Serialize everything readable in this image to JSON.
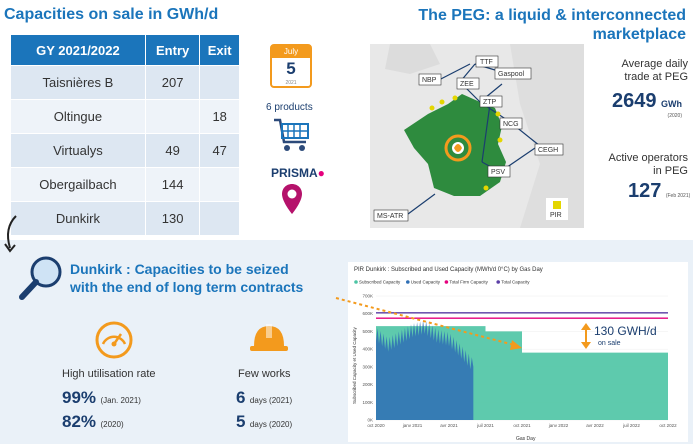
{
  "capacities": {
    "title": "Capacities on sale in GWh/d",
    "headers": [
      "GY 2021/2022",
      "Entry",
      "Exit"
    ],
    "rows": [
      {
        "name": "Taisnières B",
        "entry": "207",
        "exit": ""
      },
      {
        "name": "Oltingue",
        "entry": "",
        "exit": "18"
      },
      {
        "name": "Virtualys",
        "entry": "49",
        "exit": "47"
      },
      {
        "name": "Obergailbach",
        "entry": "144",
        "exit": ""
      },
      {
        "name": "Dunkirk",
        "entry": "130",
        "exit": ""
      }
    ]
  },
  "calendar": {
    "month": "July",
    "day": "5",
    "year": "2021"
  },
  "products_label": "6 products",
  "prisma_label": "PRISMA",
  "peg": {
    "title_line1": "The PEG: a liquid & interconnected",
    "title_line2": "marketplace",
    "map_labels": {
      "ttf": "TTF",
      "nbp": "NBP",
      "zee": "ZEE",
      "gaspool": "Gaspool",
      "ztp": "ZTP",
      "ncg": "NCG",
      "cegh": "CEGH",
      "psv": "PSV",
      "msatr": "MS-ATR",
      "pir": "PIR"
    },
    "trade_label_1": "Average daily",
    "trade_label_2": "trade at PEG",
    "trade_value": "2649",
    "trade_unit": "GWh",
    "trade_year": "(2020)",
    "operators_label_1": "Active operators",
    "operators_label_2": "in PEG",
    "operators_value": "127",
    "operators_date": "(Feb 2021)"
  },
  "dunkirk": {
    "title_line1": "Dunkirk : Capacities to be seized",
    "title_line2": "with the end of long term contracts",
    "util_label": "High utilisation rate",
    "util_val1": "99%",
    "util_note1": "(Jan. 2021)",
    "util_val2": "82%",
    "util_note2": "(2020)",
    "works_label": "Few works",
    "works_val1": "6",
    "works_note1": "days (2021)",
    "works_val2": "5",
    "works_note2": "days (2020)"
  },
  "colors": {
    "blue": "#1b75bb",
    "navy": "#1b3e6f",
    "orange": "#f39a1d",
    "teal": "#4cc4a4",
    "pink": "#e5007d"
  },
  "chart_data": {
    "type": "area",
    "title": "PIR Dunkirk : Subscribed and Used Capacity (MWh/d 0°C) by Gas Day",
    "xlabel": "Gas Day",
    "ylabel": "Subscribed Capacity et Used Capacity",
    "legend": [
      "Subscribed Capacity",
      "Used Capacity",
      "Total Firm Capacity",
      "Total Capacity"
    ],
    "legend_position": "top-left",
    "x_ticks": [
      "oct 2020",
      "janv 2021",
      "avr 2021",
      "juil 2021",
      "oct 2021",
      "janv 2022",
      "avr 2022",
      "juil 2022",
      "oct 2022"
    ],
    "y_ticks": [
      "0K",
      "100K",
      "200K",
      "300K",
      "400K",
      "500K",
      "600K",
      "700K"
    ],
    "ylim": [
      0,
      700000
    ],
    "series": [
      {
        "name": "Total Capacity",
        "color": "#5b3fa6",
        "x": [
          "oct 2020",
          "oct 2022"
        ],
        "values": [
          605000,
          605000
        ]
      },
      {
        "name": "Total Firm Capacity",
        "color": "#e5007d",
        "x": [
          "oct 2020",
          "oct 2022"
        ],
        "values": [
          575000,
          575000
        ]
      },
      {
        "name": "Subscribed Capacity",
        "color": "#4cc4a4",
        "x": [
          "oct 2020",
          "juil 2021",
          "juil 2021",
          "oct 2021",
          "oct 2021",
          "oct 2022"
        ],
        "values": [
          530000,
          530000,
          500000,
          500000,
          380000,
          380000
        ]
      },
      {
        "name": "Used Capacity",
        "color": "#2f6fb5",
        "x": [
          "oct 2020",
          "nov 2020",
          "dec 2020",
          "janv 2021",
          "fev 2021",
          "mars 2021",
          "avr 2021",
          "mai 2021",
          "juin 2021"
        ],
        "values": [
          480000,
          420000,
          460000,
          500000,
          520000,
          470000,
          450000,
          380000,
          300000
        ]
      }
    ],
    "annotation": "130 GWH/d",
    "annotation_sub": "on sale"
  }
}
